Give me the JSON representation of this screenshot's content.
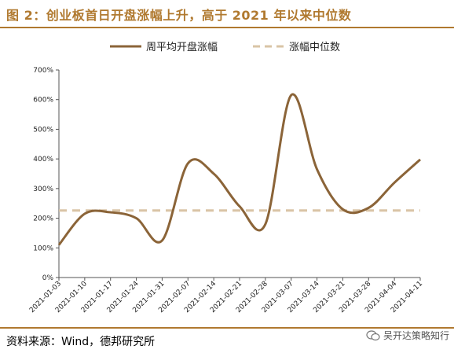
{
  "header": {
    "title": "图 2：创业板首日开盘涨幅上升，高于 2021 年以来中位数"
  },
  "footer": {
    "source": "资料来源：Wind，德邦研究所",
    "watermark": "吴开达策略知行"
  },
  "chart_data": {
    "type": "line",
    "title": "",
    "xlabel": "",
    "ylabel": "",
    "ylim": [
      0,
      700
    ],
    "yticks": [
      "0%",
      "100%",
      "200%",
      "300%",
      "400%",
      "500%",
      "600%",
      "700%"
    ],
    "categories": [
      "2021-01-03",
      "2021-01-10",
      "2021-01-17",
      "2021-01-24",
      "2021-01-31",
      "2021-02-07",
      "2021-02-14",
      "2021-02-21",
      "2021-02-28",
      "2021-03-07",
      "2021-03-14",
      "2021-03-21",
      "2021-03-28",
      "2021-04-04",
      "2021-04-11"
    ],
    "legend_placement": "top",
    "series": [
      {
        "name": "周平均开盘涨幅",
        "style": "solid",
        "color": "#8b6438",
        "values": [
          110,
          215,
          220,
          200,
          125,
          385,
          350,
          240,
          180,
          615,
          365,
          230,
          235,
          320,
          398
        ]
      },
      {
        "name": "涨幅中位数",
        "style": "dashed",
        "color": "#d9c4a6",
        "values": [
          226,
          226,
          226,
          226,
          226,
          226,
          226,
          226,
          226,
          226,
          226,
          226,
          226,
          226,
          226
        ]
      }
    ]
  }
}
